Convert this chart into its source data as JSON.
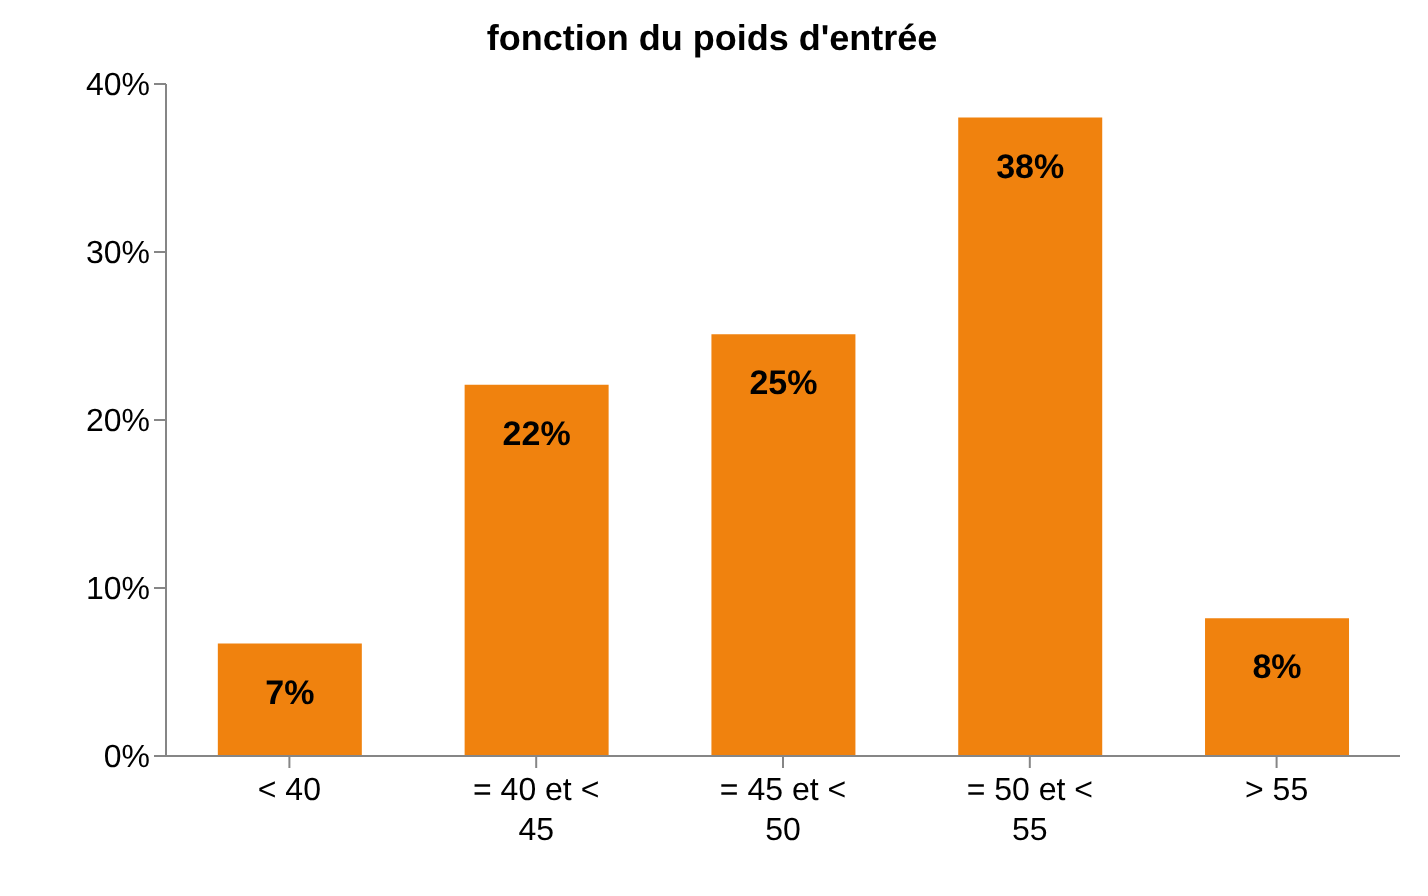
{
  "chart_data": {
    "type": "bar",
    "title": "fonction du poids d'entrée",
    "categories": [
      "< 40",
      "= 40 et < 45",
      "= 45 et < 50",
      "= 50 et < 55",
      "> 55"
    ],
    "values": [
      6.7,
      22.1,
      25.1,
      38,
      8.2
    ],
    "value_labels": [
      "7%",
      "22%",
      "25%",
      "38%",
      "8%"
    ],
    "color": "#f0820e",
    "ylim": [
      0,
      40
    ],
    "yticks": [
      {
        "value": 0,
        "label": "0%"
      },
      {
        "value": 10,
        "label": "10%"
      },
      {
        "value": 20,
        "label": "20%"
      },
      {
        "value": 30,
        "label": "30%"
      },
      {
        "value": 40,
        "label": "40%"
      }
    ],
    "grid": false,
    "legend": false
  }
}
